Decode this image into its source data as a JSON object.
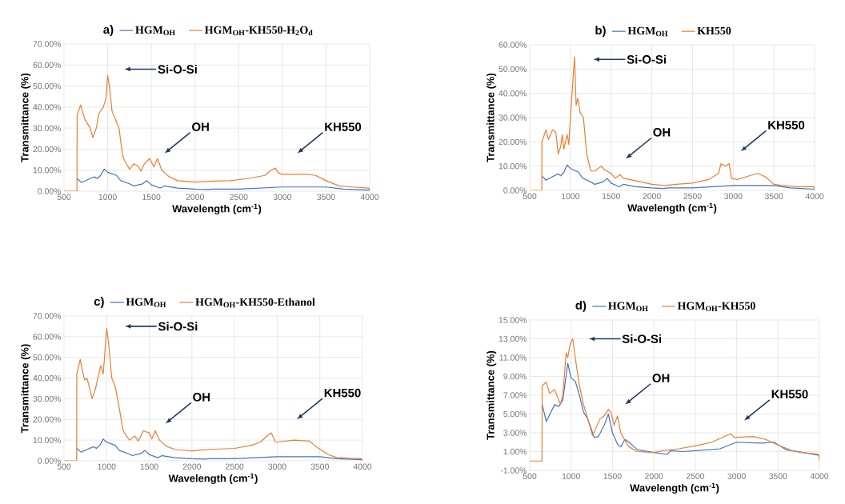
{
  "chart_data": [
    {
      "type": "line",
      "title": "a)",
      "xlabel": "Wavelength (cm$^{-1}$)",
      "ylabel": "Transmittance (%)",
      "legend": "top",
      "grid": true,
      "marker": "none",
      "line_style": "solid",
      "xlim": [
        500,
        4000
      ],
      "xticks": [
        500,
        1000,
        1500,
        2000,
        2500,
        3000,
        3500,
        4000
      ],
      "ylim": [
        0,
        70
      ],
      "yticks": [
        {
          "value": 0,
          "label": "0.00%"
        },
        {
          "value": 10,
          "label": "10.00%"
        },
        {
          "value": 20,
          "label": "20.00%"
        },
        {
          "value": 30,
          "label": "30.00%"
        },
        {
          "value": 40,
          "label": "40.00%"
        },
        {
          "value": 50,
          "label": "50.00%"
        },
        {
          "value": 60,
          "label": "60.00%"
        },
        {
          "value": 70,
          "label": "70.00%"
        }
      ],
      "series": [
        {
          "name": "HGM$_{OH}$",
          "color": "#4472c4",
          "x": [
            650,
            700,
            800,
            850,
            880,
            920,
            960,
            1000,
            1100,
            1150,
            1250,
            1300,
            1400,
            1450,
            1500,
            1600,
            1650,
            1800,
            2000,
            2150,
            2200,
            2500,
            3000,
            3500,
            3700,
            4000
          ],
          "values": [
            6,
            4.2,
            6,
            6.8,
            6,
            7.5,
            10.5,
            9,
            7.5,
            5,
            3.5,
            2.5,
            3.5,
            5,
            3,
            1.5,
            2.5,
            1.5,
            1,
            0.8,
            1,
            1,
            2,
            2,
            1,
            0.5
          ]
        },
        {
          "name": "HGM$_{OH}$-KH550-H$_{2}$O$_{d}$",
          "color": "#ed7d31",
          "x": [
            500,
            648,
            650,
            690,
            740,
            800,
            830,
            870,
            900,
            950,
            980,
            1000,
            1020,
            1050,
            1100,
            1130,
            1170,
            1200,
            1250,
            1300,
            1350,
            1380,
            1420,
            1480,
            1530,
            1570,
            1620,
            1700,
            1800,
            2000,
            2200,
            2400,
            2600,
            2800,
            2870,
            2920,
            2960,
            3000,
            3300,
            3380,
            3500,
            3650,
            3800,
            3990,
            4000
          ],
          "values": [
            0,
            0,
            36,
            41,
            34,
            30,
            25.5,
            30,
            37,
            40,
            44,
            55,
            50,
            38,
            33,
            30,
            17,
            14,
            10.5,
            13,
            12,
            9.5,
            13,
            15.5,
            11.5,
            15.5,
            10,
            7,
            5,
            4.3,
            4.8,
            5,
            6,
            7.5,
            10,
            11,
            8.5,
            8,
            8,
            7.5,
            5,
            2.5,
            2,
            1.5,
            0.5
          ]
        }
      ],
      "annotations": [
        "Si-O-Si",
        "OH",
        "KH550"
      ]
    },
    {
      "type": "line",
      "title": "b)",
      "xlabel": "Wavelength (cm$^{-1}$)",
      "ylabel": "Transmittance (%)",
      "legend": "top",
      "grid": true,
      "marker": "none",
      "line_style": "solid",
      "xlim": [
        500,
        4000
      ],
      "xticks": [
        500,
        1000,
        1500,
        2000,
        2500,
        3000,
        3500,
        4000
      ],
      "ylim": [
        0,
        60
      ],
      "yticks": [
        {
          "value": 0,
          "label": "0.00%"
        },
        {
          "value": 10,
          "label": "10.00%"
        },
        {
          "value": 20,
          "label": "20.00%"
        },
        {
          "value": 30,
          "label": "30.00%"
        },
        {
          "value": 40,
          "label": "40.00%"
        },
        {
          "value": 50,
          "label": "50.00%"
        },
        {
          "value": 60,
          "label": "60.00%"
        }
      ],
      "series": [
        {
          "name": "HGM$_{OH}$",
          "color": "#4472c4",
          "x": [
            650,
            700,
            800,
            850,
            880,
            920,
            960,
            1000,
            1100,
            1150,
            1250,
            1300,
            1400,
            1450,
            1500,
            1600,
            1650,
            1800,
            2000,
            2150,
            2200,
            2500,
            3000,
            3500,
            3700,
            4000
          ],
          "values": [
            6,
            4.2,
            6,
            6.8,
            6,
            7.5,
            10.5,
            9,
            7.5,
            5,
            3.5,
            2.5,
            3.5,
            5,
            3,
            1.5,
            2.5,
            1.5,
            1,
            0.8,
            1,
            1,
            2,
            2,
            1,
            0.5
          ]
        },
        {
          "name": "KH550",
          "color": "#ed7d31",
          "x": [
            500,
            648,
            650,
            700,
            730,
            780,
            820,
            850,
            880,
            900,
            920,
            960,
            980,
            1000,
            1030,
            1050,
            1070,
            1090,
            1120,
            1160,
            1200,
            1250,
            1300,
            1380,
            1420,
            1500,
            1550,
            1610,
            1650,
            1800,
            2000,
            2160,
            2300,
            2500,
            2700,
            2820,
            2850,
            2900,
            2950,
            2980,
            3050,
            3200,
            3300,
            3400,
            3500,
            3600,
            3800,
            3990,
            4000
          ],
          "values": [
            0,
            0,
            20,
            25,
            21,
            25,
            24,
            15,
            18,
            23,
            17,
            23,
            19,
            30,
            45,
            55,
            35,
            38,
            32,
            30,
            15,
            8,
            8,
            10,
            8.5,
            7,
            5,
            6.5,
            5,
            4,
            2.5,
            2,
            2.5,
            3,
            4.5,
            7,
            11,
            10,
            11,
            5,
            4.5,
            6,
            7,
            5.5,
            2.5,
            2,
            1.5,
            1.5,
            0
          ]
        }
      ],
      "annotations": [
        "Si-O-Si",
        "OH",
        "KH550"
      ]
    },
    {
      "type": "line",
      "title": "c)",
      "xlabel": "Wavelength (cm$^{-1}$)",
      "ylabel": "Transmittance (%)",
      "legend": "top",
      "grid": true,
      "marker": "none",
      "line_style": "solid",
      "xlim": [
        500,
        4000
      ],
      "xticks": [
        500,
        1000,
        1500,
        2000,
        2500,
        3000,
        3500,
        4000
      ],
      "ylim": [
        0,
        70
      ],
      "yticks": [
        {
          "value": 0,
          "label": "0.00%"
        },
        {
          "value": 10,
          "label": "10.00%"
        },
        {
          "value": 20,
          "label": "20.00%"
        },
        {
          "value": 30,
          "label": "30.00%"
        },
        {
          "value": 40,
          "label": "40.00%"
        },
        {
          "value": 50,
          "label": "50.00%"
        },
        {
          "value": 60,
          "label": "60.00%"
        },
        {
          "value": 70,
          "label": "70.00%"
        }
      ],
      "series": [
        {
          "name": "HGM$_{OH}$",
          "color": "#4472c4",
          "x": [
            650,
            700,
            800,
            850,
            880,
            920,
            960,
            1000,
            1100,
            1150,
            1250,
            1300,
            1400,
            1450,
            1500,
            1600,
            1650,
            1800,
            2000,
            2150,
            2200,
            2500,
            3000,
            3500,
            3700,
            4000
          ],
          "values": [
            6,
            4.2,
            6,
            6.8,
            6,
            7.5,
            10.5,
            9,
            7.5,
            5,
            3.5,
            2.5,
            3.5,
            5,
            3,
            1.5,
            2.5,
            1.5,
            1,
            0.8,
            1,
            1,
            2,
            2,
            1,
            0.5
          ]
        },
        {
          "name": "HGM$_{OH}$-KH550-Ethanol",
          "color": "#ed7d31",
          "x": [
            500,
            648,
            650,
            690,
            740,
            770,
            830,
            870,
            930,
            960,
            1000,
            1020,
            1060,
            1100,
            1150,
            1190,
            1230,
            1270,
            1330,
            1370,
            1430,
            1500,
            1530,
            1570,
            1620,
            1700,
            1800,
            2000,
            2200,
            2500,
            2700,
            2800,
            2880,
            2930,
            2980,
            3200,
            3380,
            3450,
            3600,
            3700,
            3990,
            4000
          ],
          "values": [
            0,
            0,
            42,
            49,
            39,
            40,
            30,
            35,
            46,
            42,
            64,
            58,
            40,
            36,
            25,
            15,
            12,
            10,
            12,
            9.5,
            14.5,
            13.5,
            10.5,
            14.5,
            10,
            7,
            5.5,
            4.8,
            5.5,
            6,
            7.5,
            9,
            12,
            13.5,
            9,
            10,
            9.5,
            7,
            3,
            1.5,
            1,
            0
          ]
        }
      ],
      "annotations": [
        "Si-O-Si",
        "OH",
        "KH550"
      ]
    },
    {
      "type": "line",
      "title": "d)",
      "xlabel": "Wavelength (cm$^{-1}$)",
      "ylabel": "Transmittance (%)",
      "legend": "top",
      "grid": true,
      "marker": "none",
      "line_style": "solid",
      "xlim": [
        500,
        4000
      ],
      "xticks": [
        500,
        1000,
        1500,
        2000,
        2500,
        3000,
        3500,
        4000
      ],
      "ylim": [
        -1,
        15
      ],
      "yticks": [
        {
          "value": -1,
          "label": "-1.00%"
        },
        {
          "value": 1,
          "label": "1.00%"
        },
        {
          "value": 3,
          "label": "3.00%"
        },
        {
          "value": 5,
          "label": "5.00%"
        },
        {
          "value": 7,
          "label": "7.00%"
        },
        {
          "value": 9,
          "label": "9.00%"
        },
        {
          "value": 11,
          "label": "11.00%"
        },
        {
          "value": 13,
          "label": "13.00%"
        },
        {
          "value": 15,
          "label": "15.00%"
        }
      ],
      "series": [
        {
          "name": "HGM$_{OH}$",
          "color": "#4472c4",
          "x": [
            650,
            700,
            800,
            850,
            900,
            960,
            1000,
            1050,
            1100,
            1150,
            1200,
            1280,
            1330,
            1400,
            1450,
            1500,
            1560,
            1600,
            1650,
            1700,
            1800,
            2000,
            2160,
            2200,
            2350,
            2500,
            2800,
            3000,
            3300,
            3450,
            3600,
            4000
          ],
          "values": [
            6,
            4.2,
            6,
            5.8,
            6.5,
            10.4,
            8.8,
            8.5,
            7,
            5.2,
            4.5,
            2.5,
            2.6,
            3.8,
            5,
            3,
            1.8,
            1.5,
            2.3,
            2,
            1.2,
            0.9,
            0.7,
            1.1,
            1,
            1.1,
            1.3,
            2,
            1.9,
            2,
            1.2,
            0.6
          ]
        },
        {
          "name": "HGM$_{OH}$-KH550",
          "color": "#ed7d31",
          "x": [
            500,
            648,
            650,
            700,
            740,
            800,
            850,
            870,
            900,
            940,
            960,
            990,
            1020,
            1050,
            1100,
            1150,
            1200,
            1260,
            1300,
            1350,
            1400,
            1450,
            1480,
            1520,
            1560,
            1600,
            1650,
            1700,
            1800,
            2000,
            2100,
            2300,
            2500,
            2700,
            2850,
            2930,
            2970,
            3200,
            3350,
            3500,
            3700,
            3990,
            4000
          ],
          "values": [
            0,
            0,
            8,
            8.4,
            7.2,
            7.6,
            6.5,
            6,
            7,
            11.5,
            11,
            12.5,
            13,
            11,
            8,
            6,
            4.5,
            2.7,
            3.5,
            4.5,
            4.8,
            5.5,
            5.2,
            3.8,
            4.8,
            3,
            2.2,
            1.5,
            1,
            0.9,
            1.1,
            1.3,
            1.6,
            2,
            2.6,
            2.9,
            2.5,
            2.6,
            2.3,
            1.7,
            1,
            0.7,
            0
          ]
        }
      ],
      "annotations": [
        "Si-O-Si",
        "OH",
        "KH550"
      ]
    }
  ]
}
